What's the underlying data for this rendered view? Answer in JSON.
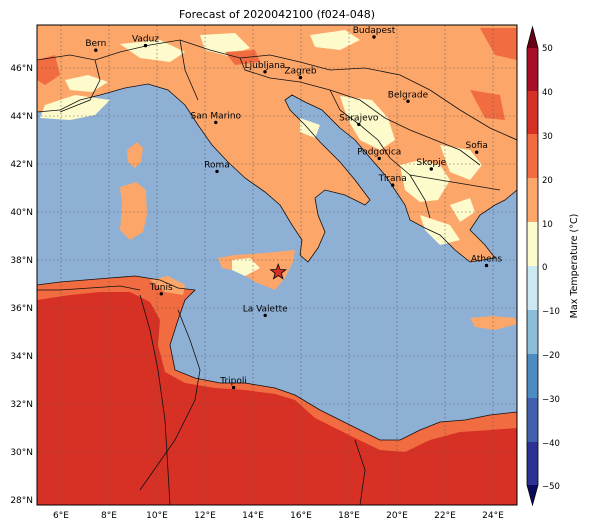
{
  "title": "Forecast of 2020042100 (f024-048)",
  "lat_ticks": [
    "46°N",
    "44°N",
    "42°N",
    "40°N",
    "38°N",
    "36°N",
    "34°N",
    "32°N",
    "30°N",
    "28°N"
  ],
  "lon_ticks": [
    "6°E",
    "8°E",
    "10°E",
    "12°E",
    "14°E",
    "16°E",
    "18°E",
    "20°E",
    "22°E",
    "24°E"
  ],
  "cities": [
    {
      "name": "Bern",
      "lon": 7.45,
      "lat": 46.95
    },
    {
      "name": "Vaduz",
      "lon": 9.52,
      "lat": 47.14
    },
    {
      "name": "Budapest",
      "lon": 19.04,
      "lat": 47.5
    },
    {
      "name": "Ljubljana",
      "lon": 14.5,
      "lat": 46.05
    },
    {
      "name": "Zagreb",
      "lon": 15.98,
      "lat": 45.81
    },
    {
      "name": "Belgrade",
      "lon": 20.46,
      "lat": 44.82
    },
    {
      "name": "San Marino",
      "lon": 12.45,
      "lat": 43.94
    },
    {
      "name": "Sarajevo",
      "lon": 18.41,
      "lat": 43.86
    },
    {
      "name": "Sofia",
      "lon": 23.32,
      "lat": 42.7
    },
    {
      "name": "Podgorica",
      "lon": 19.26,
      "lat": 42.44
    },
    {
      "name": "Skopje",
      "lon": 21.43,
      "lat": 42.0
    },
    {
      "name": "Roma",
      "lon": 12.5,
      "lat": 41.9
    },
    {
      "name": "Tirana",
      "lon": 19.82,
      "lat": 41.33
    },
    {
      "name": "Athens",
      "lon": 23.73,
      "lat": 37.98
    },
    {
      "name": "Tunis",
      "lon": 10.18,
      "lat": 36.8
    },
    {
      "name": "La Valette",
      "lon": 14.51,
      "lat": 35.9
    },
    {
      "name": "Tripoli",
      "lon": 13.19,
      "lat": 32.89
    }
  ],
  "marker": {
    "symbol": "star",
    "lon": 15.05,
    "lat": 37.7
  },
  "colorbar": {
    "label": "Max Temperature (°C)",
    "ticks": [
      "50",
      "40",
      "30",
      "20",
      "10",
      "0",
      "−10",
      "−20",
      "−30",
      "−40",
      "−50"
    ],
    "colors": {
      "lt_-50": "#0b0b5e",
      "-50_-40": "#2d3193",
      "-40_-30": "#3f60ad",
      "-30_-20": "#4d8bc0",
      "-20_-10": "#8cbedb",
      "-10_0": "#cce8f1",
      "0_10": "#fdfacb",
      "10_20": "#fca66a",
      "20_30": "#f16c40",
      "30_40": "#d73025",
      "40_50": "#a60f26",
      "gt_50": "#6a0016"
    }
  },
  "colors": {
    "sea": "#8fb0d5",
    "border": "#111111"
  }
}
